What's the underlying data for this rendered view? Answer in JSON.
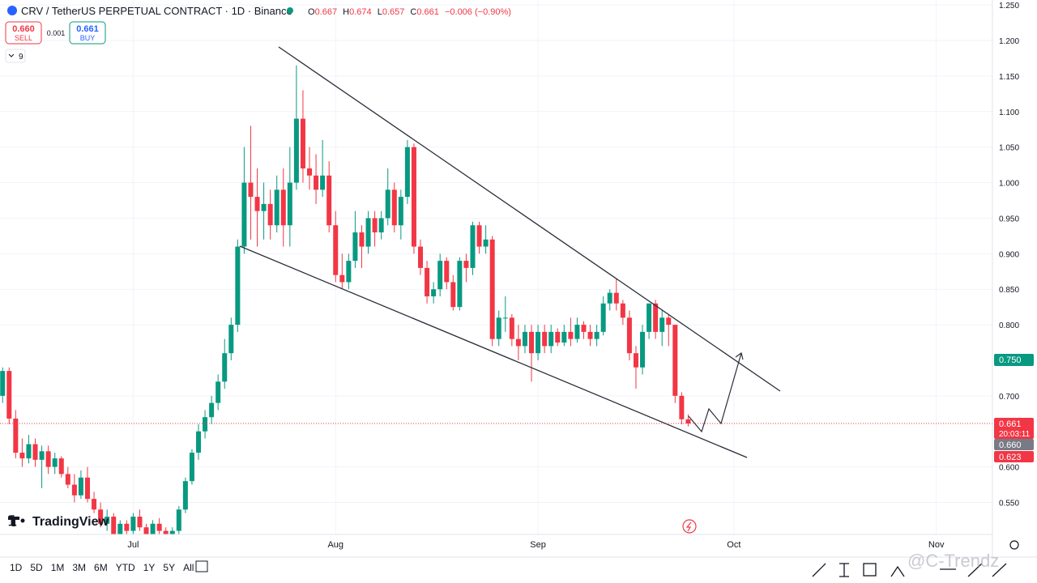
{
  "header": {
    "symbol": "CRV / TetherUS PERPETUAL CONTRACT · 1D · Binance",
    "o": "O",
    "h": "H",
    "l": "L",
    "c": "C",
    "change": "−0.006 (−0.90%)",
    "sell_price": "0.660",
    "sell": "SELL",
    "spread": "0.001",
    "buy_price": "0.661",
    "buy": "BUY",
    "indicators": "9"
  },
  "chart_data": {
    "type": "candlestick",
    "up_color": "#089981",
    "down_color": "#f23645",
    "grid": true,
    "xlim": [
      -0.4,
      151.6
    ],
    "xticks": [
      {
        "value": 20,
        "label": "Jul"
      },
      {
        "value": 51,
        "label": "Aug"
      },
      {
        "value": 82,
        "label": "Sep"
      },
      {
        "value": 112,
        "label": "Oct"
      },
      {
        "value": 143,
        "label": "Nov"
      }
    ],
    "ylim": [
      0.505,
      1.257
    ],
    "yticks": [
      {
        "value": 1.25,
        "label": "1.250"
      },
      {
        "value": 1.2,
        "label": "1.200"
      },
      {
        "value": 1.15,
        "label": "1.150"
      },
      {
        "value": 1.1,
        "label": "1.100"
      },
      {
        "value": 1.05,
        "label": "1.050"
      },
      {
        "value": 1.0,
        "label": "1.000"
      },
      {
        "value": 0.95,
        "label": "0.950"
      },
      {
        "value": 0.9,
        "label": "0.900"
      },
      {
        "value": 0.85,
        "label": "0.850"
      },
      {
        "value": 0.8,
        "label": "0.800"
      },
      {
        "value": 0.7,
        "label": "0.700"
      },
      {
        "value": 0.6,
        "label": "0.600"
      },
      {
        "value": 0.55,
        "label": "0.550"
      }
    ],
    "ohlc": [
      [
        0.7,
        0.74,
        0.69,
        0.735
      ],
      [
        0.735,
        0.74,
        0.66,
        0.668
      ],
      [
        0.668,
        0.68,
        0.612,
        0.62
      ],
      [
        0.62,
        0.64,
        0.6,
        0.612
      ],
      [
        0.612,
        0.645,
        0.605,
        0.632
      ],
      [
        0.632,
        0.64,
        0.6,
        0.61
      ],
      [
        0.61,
        0.63,
        0.57,
        0.622
      ],
      [
        0.622,
        0.63,
        0.59,
        0.6
      ],
      [
        0.6,
        0.62,
        0.59,
        0.612
      ],
      [
        0.612,
        0.615,
        0.585,
        0.59
      ],
      [
        0.59,
        0.6,
        0.57,
        0.575
      ],
      [
        0.575,
        0.59,
        0.55,
        0.56
      ],
      [
        0.56,
        0.595,
        0.555,
        0.585
      ],
      [
        0.585,
        0.6,
        0.55,
        0.555
      ],
      [
        0.555,
        0.565,
        0.535,
        0.54
      ],
      [
        0.54,
        0.55,
        0.515,
        0.52
      ],
      [
        0.52,
        0.54,
        0.51,
        0.53
      ],
      [
        0.53,
        0.535,
        0.5,
        0.505
      ],
      [
        0.505,
        0.525,
        0.5,
        0.52
      ],
      [
        0.52,
        0.525,
        0.505,
        0.51
      ],
      [
        0.51,
        0.535,
        0.505,
        0.53
      ],
      [
        0.53,
        0.54,
        0.51,
        0.515
      ],
      [
        0.515,
        0.52,
        0.5,
        0.505
      ],
      [
        0.505,
        0.525,
        0.5,
        0.52
      ],
      [
        0.52,
        0.528,
        0.505,
        0.51
      ],
      [
        0.51,
        0.515,
        0.5,
        0.505
      ],
      [
        0.505,
        0.515,
        0.5,
        0.51
      ],
      [
        0.51,
        0.545,
        0.505,
        0.54
      ],
      [
        0.54,
        0.585,
        0.535,
        0.58
      ],
      [
        0.58,
        0.625,
        0.575,
        0.62
      ],
      [
        0.62,
        0.66,
        0.61,
        0.65
      ],
      [
        0.65,
        0.68,
        0.64,
        0.67
      ],
      [
        0.67,
        0.7,
        0.66,
        0.69
      ],
      [
        0.69,
        0.73,
        0.68,
        0.72
      ],
      [
        0.72,
        0.78,
        0.71,
        0.76
      ],
      [
        0.76,
        0.81,
        0.75,
        0.8
      ],
      [
        0.8,
        0.92,
        0.79,
        0.91
      ],
      [
        0.91,
        1.05,
        0.9,
        1.0
      ],
      [
        1.0,
        1.08,
        0.92,
        0.98
      ],
      [
        0.98,
        1.02,
        0.91,
        0.96
      ],
      [
        0.96,
        1.0,
        0.92,
        0.97
      ],
      [
        0.97,
        0.99,
        0.92,
        0.94
      ],
      [
        0.94,
        1.01,
        0.93,
        0.99
      ],
      [
        0.99,
        1.02,
        0.91,
        0.94
      ],
      [
        0.94,
        1.05,
        0.91,
        1.0
      ],
      [
        1.0,
        1.165,
        0.99,
        1.09
      ],
      [
        1.09,
        1.13,
        1.0,
        1.02
      ],
      [
        1.02,
        1.05,
        0.99,
        1.01
      ],
      [
        1.01,
        1.04,
        0.97,
        0.99
      ],
      [
        0.99,
        1.06,
        0.98,
        1.01
      ],
      [
        1.01,
        1.03,
        0.93,
        0.94
      ],
      [
        0.94,
        0.96,
        0.86,
        0.87
      ],
      [
        0.87,
        0.9,
        0.85,
        0.86
      ],
      [
        0.86,
        0.9,
        0.85,
        0.89
      ],
      [
        0.89,
        0.96,
        0.88,
        0.93
      ],
      [
        0.93,
        0.94,
        0.88,
        0.91
      ],
      [
        0.91,
        0.96,
        0.9,
        0.95
      ],
      [
        0.95,
        0.96,
        0.91,
        0.93
      ],
      [
        0.93,
        0.96,
        0.92,
        0.95
      ],
      [
        0.95,
        1.02,
        0.94,
        0.99
      ],
      [
        0.99,
        1.0,
        0.93,
        0.94
      ],
      [
        0.94,
        0.99,
        0.92,
        0.98
      ],
      [
        0.98,
        1.06,
        0.97,
        1.05
      ],
      [
        1.05,
        1.055,
        0.9,
        0.91
      ],
      [
        0.91,
        0.92,
        0.87,
        0.88
      ],
      [
        0.88,
        0.89,
        0.83,
        0.84
      ],
      [
        0.84,
        0.86,
        0.83,
        0.85
      ],
      [
        0.85,
        0.9,
        0.84,
        0.89
      ],
      [
        0.89,
        0.895,
        0.85,
        0.86
      ],
      [
        0.86,
        0.87,
        0.82,
        0.825
      ],
      [
        0.825,
        0.895,
        0.82,
        0.89
      ],
      [
        0.89,
        0.9,
        0.86,
        0.88
      ],
      [
        0.88,
        0.945,
        0.87,
        0.94
      ],
      [
        0.94,
        0.945,
        0.9,
        0.91
      ],
      [
        0.91,
        0.94,
        0.9,
        0.92
      ],
      [
        0.92,
        0.925,
        0.77,
        0.78
      ],
      [
        0.78,
        0.82,
        0.77,
        0.81
      ],
      [
        0.81,
        0.84,
        0.79,
        0.81
      ],
      [
        0.81,
        0.815,
        0.77,
        0.78
      ],
      [
        0.78,
        0.8,
        0.75,
        0.77
      ],
      [
        0.77,
        0.8,
        0.76,
        0.79
      ],
      [
        0.79,
        0.8,
        0.72,
        0.76
      ],
      [
        0.76,
        0.8,
        0.75,
        0.79
      ],
      [
        0.79,
        0.8,
        0.76,
        0.77
      ],
      [
        0.77,
        0.8,
        0.76,
        0.79
      ],
      [
        0.79,
        0.795,
        0.77,
        0.775
      ],
      [
        0.775,
        0.8,
        0.77,
        0.79
      ],
      [
        0.79,
        0.81,
        0.77,
        0.78
      ],
      [
        0.78,
        0.81,
        0.775,
        0.8
      ],
      [
        0.8,
        0.805,
        0.78,
        0.79
      ],
      [
        0.79,
        0.8,
        0.77,
        0.78
      ],
      [
        0.78,
        0.8,
        0.77,
        0.79
      ],
      [
        0.79,
        0.84,
        0.785,
        0.83
      ],
      [
        0.83,
        0.85,
        0.82,
        0.845
      ],
      [
        0.845,
        0.865,
        0.82,
        0.83
      ],
      [
        0.83,
        0.835,
        0.8,
        0.81
      ],
      [
        0.81,
        0.82,
        0.75,
        0.76
      ],
      [
        0.76,
        0.77,
        0.71,
        0.74
      ],
      [
        0.74,
        0.8,
        0.73,
        0.79
      ],
      [
        0.79,
        0.83,
        0.78,
        0.83
      ],
      [
        0.83,
        0.835,
        0.78,
        0.79
      ],
      [
        0.79,
        0.82,
        0.77,
        0.81
      ],
      [
        0.81,
        0.815,
        0.77,
        0.8
      ],
      [
        0.8,
        0.8,
        0.69,
        0.7
      ],
      [
        0.7,
        0.705,
        0.66,
        0.667
      ],
      [
        0.667,
        0.674,
        0.657,
        0.661
      ]
    ]
  },
  "price_labels": {
    "alert": "0.750",
    "last": "0.661",
    "countdown": "20:03:11",
    "bid": "0.660",
    "low": "0.623"
  },
  "logo": "TradingView",
  "watermark": "@C-Trendz",
  "timeframes": [
    "1D",
    "5D",
    "1M",
    "3M",
    "6M",
    "YTD",
    "1Y",
    "5Y",
    "All"
  ]
}
